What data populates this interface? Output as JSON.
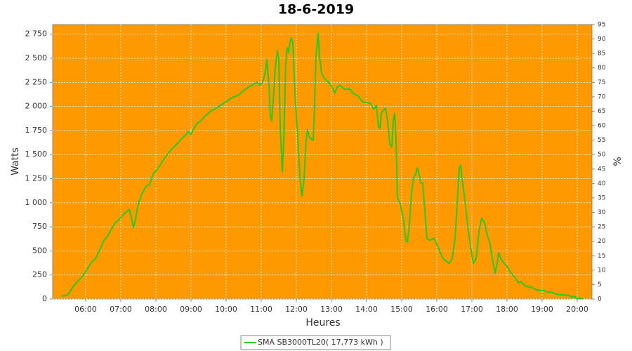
{
  "chart_data": {
    "type": "line",
    "title": "18-6-2019",
    "x_label": "Heures",
    "y_label": "Watts",
    "y2_label": "%",
    "background": "#ff9900",
    "grid": true,
    "legend": "bottom",
    "xlim": [
      5.06,
      20.42
    ],
    "xticks": [
      {
        "value": 6,
        "label": "06:00"
      },
      {
        "value": 7,
        "label": "07:00"
      },
      {
        "value": 8,
        "label": "08:00"
      },
      {
        "value": 9,
        "label": "09:00"
      },
      {
        "value": 10,
        "label": "10:00"
      },
      {
        "value": 11,
        "label": "11:00"
      },
      {
        "value": 12,
        "label": "12:00"
      },
      {
        "value": 13,
        "label": "13:00"
      },
      {
        "value": 14,
        "label": "14:00"
      },
      {
        "value": 15,
        "label": "15:00"
      },
      {
        "value": 16,
        "label": "16:00"
      },
      {
        "value": 17,
        "label": "17:00"
      },
      {
        "value": 18,
        "label": "18:00"
      },
      {
        "value": 19,
        "label": "19:00"
      },
      {
        "value": 20,
        "label": "20:00"
      }
    ],
    "ylim": [
      0,
      2850
    ],
    "yticks": [
      0,
      250,
      500,
      750,
      {
        "value": 1000,
        "label": "1 000"
      },
      {
        "value": 1250,
        "label": "1 250"
      },
      {
        "value": 1500,
        "label": "1 500"
      },
      {
        "value": 1750,
        "label": "1 750"
      },
      {
        "value": 2000,
        "label": "2 000"
      },
      {
        "value": 2250,
        "label": "2 250"
      },
      {
        "value": 2500,
        "label": "2 500"
      },
      {
        "value": 2750,
        "label": "2 750"
      }
    ],
    "y2lim": [
      0,
      95
    ],
    "y2ticks": [
      0,
      5,
      10,
      15,
      20,
      25,
      30,
      35,
      40,
      45,
      50,
      55,
      60,
      65,
      70,
      75,
      80,
      85,
      90,
      95
    ],
    "x": [
      5.32,
      5.48,
      5.56,
      5.64,
      5.76,
      5.92,
      6.06,
      6.16,
      6.28,
      6.4,
      6.52,
      6.62,
      6.72,
      6.84,
      6.96,
      7.08,
      7.24,
      7.3,
      7.36,
      7.42,
      7.5,
      7.6,
      7.72,
      7.82,
      7.92,
      8.0,
      8.12,
      8.24,
      8.36,
      8.48,
      8.6,
      8.72,
      8.84,
      8.92,
      9.0,
      9.08,
      9.16,
      9.28,
      9.4,
      9.56,
      9.76,
      9.96,
      10.16,
      10.36,
      10.52,
      10.64,
      10.88,
      10.96,
      11.04,
      11.12,
      11.16,
      11.22,
      11.26,
      11.3,
      11.34,
      11.4,
      11.46,
      11.5,
      11.54,
      11.6,
      11.64,
      11.7,
      11.74,
      11.78,
      11.82,
      11.86,
      11.9,
      11.94,
      11.98,
      12.04,
      12.1,
      12.16,
      12.22,
      12.28,
      12.32,
      12.36,
      12.42,
      12.48,
      12.52,
      12.56,
      12.62,
      12.66,
      12.72,
      12.8,
      12.92,
      13.02,
      13.1,
      13.16,
      13.24,
      13.36,
      13.52,
      13.64,
      13.76,
      13.88,
      14.0,
      14.12,
      14.2,
      14.28,
      14.34,
      14.38,
      14.42,
      14.48,
      14.54,
      14.6,
      14.66,
      14.72,
      14.76,
      14.8,
      14.84,
      14.88,
      14.96,
      15.04,
      15.12,
      15.16,
      15.22,
      15.28,
      15.34,
      15.4,
      15.44,
      15.48,
      15.54,
      15.6,
      15.66,
      15.72,
      15.8,
      15.92,
      16.0,
      16.08,
      16.16,
      16.28,
      16.36,
      16.44,
      16.52,
      16.58,
      16.64,
      16.68,
      16.72,
      16.8,
      16.88,
      16.96,
      17.04,
      17.12,
      17.2,
      17.28,
      17.36,
      17.44,
      17.52,
      17.58,
      17.66,
      17.72,
      17.76,
      17.84,
      17.92,
      18.0,
      18.08,
      18.16,
      18.24,
      18.32,
      18.4,
      18.48,
      18.56,
      18.72,
      18.8,
      18.92,
      19.04,
      19.16,
      19.28,
      19.4,
      19.64,
      19.76,
      19.84,
      19.92,
      20.0,
      20.08,
      20.16
    ],
    "series": [
      {
        "name": "SMA SB3000TL20( 17,773 kWh )",
        "color": "#22cc22",
        "values": [
          30,
          40,
          80,
          130,
          180,
          240,
          320,
          380,
          420,
          510,
          610,
          650,
          720,
          790,
          830,
          880,
          930,
          850,
          740,
          830,
          990,
          1090,
          1170,
          1190,
          1300,
          1330,
          1390,
          1460,
          1520,
          1570,
          1610,
          1660,
          1700,
          1740,
          1710,
          1770,
          1820,
          1850,
          1900,
          1950,
          1990,
          2040,
          2090,
          2120,
          2170,
          2200,
          2250,
          2220,
          2250,
          2360,
          2490,
          2230,
          1900,
          1850,
          2050,
          2410,
          2580,
          2490,
          1790,
          1320,
          1650,
          2450,
          2610,
          2560,
          2670,
          2710,
          2660,
          2310,
          2010,
          1690,
          1280,
          1070,
          1250,
          1650,
          1760,
          1690,
          1660,
          1650,
          2010,
          2520,
          2760,
          2520,
          2340,
          2290,
          2250,
          2200,
          2140,
          2200,
          2220,
          2180,
          2180,
          2130,
          2110,
          2050,
          2040,
          2030,
          1970,
          2010,
          1790,
          1770,
          1930,
          1960,
          1980,
          1850,
          1610,
          1580,
          1850,
          1930,
          1660,
          1050,
          990,
          850,
          610,
          590,
          770,
          1100,
          1260,
          1300,
          1360,
          1320,
          1210,
          1200,
          920,
          630,
          610,
          630,
          570,
          500,
          430,
          390,
          370,
          420,
          630,
          980,
          1360,
          1390,
          1250,
          1030,
          760,
          550,
          370,
          420,
          700,
          840,
          790,
          660,
          570,
          420,
          270,
          370,
          480,
          410,
          370,
          340,
          290,
          250,
          220,
          170,
          180,
          150,
          130,
          120,
          100,
          90,
          90,
          70,
          70,
          50,
          40,
          40,
          20,
          30,
          0,
          10,
          0
        ]
      }
    ]
  }
}
